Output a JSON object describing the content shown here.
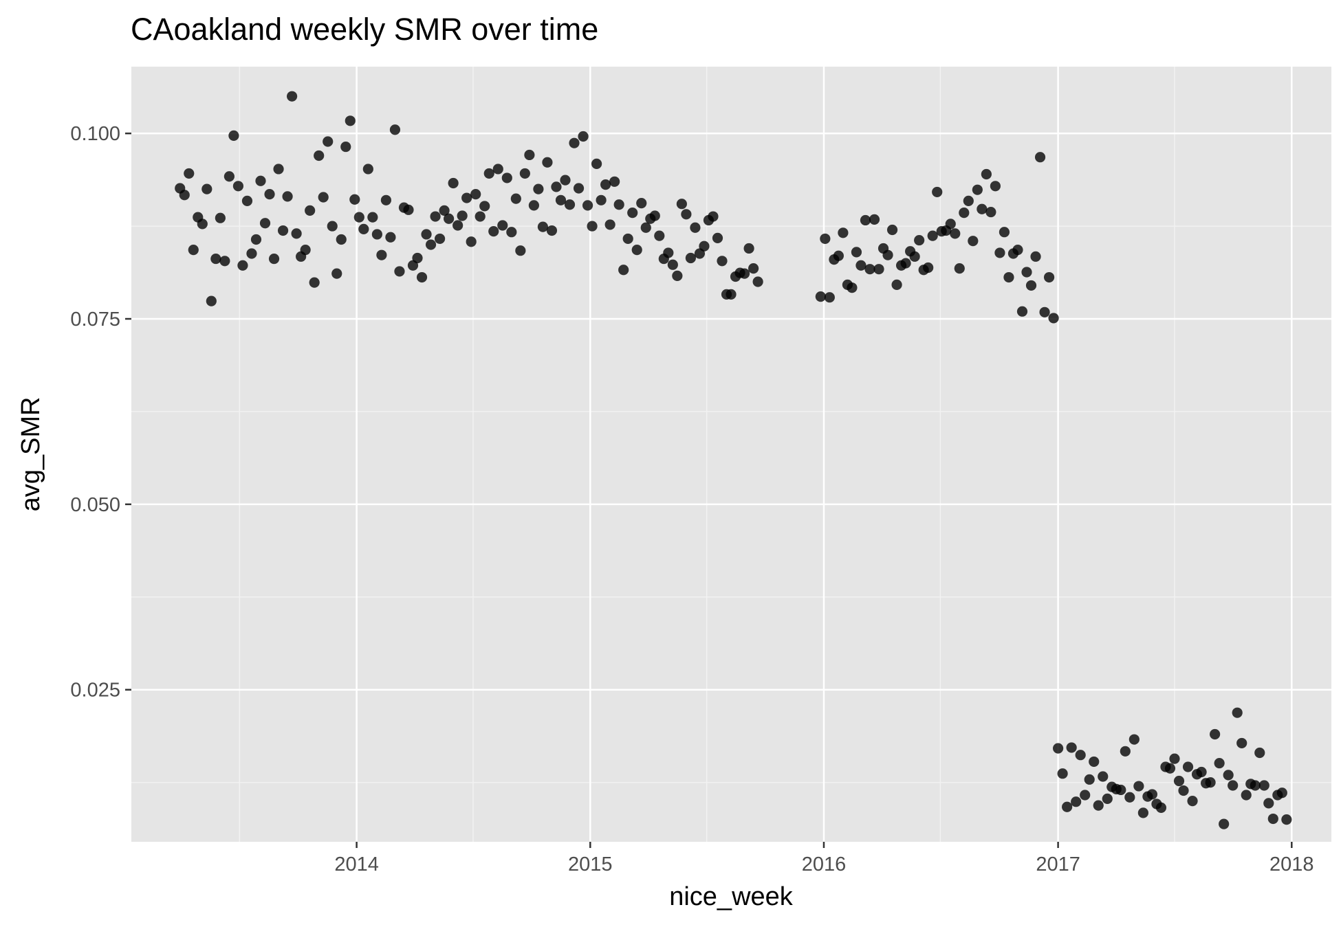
{
  "chart_data": {
    "type": "scatter",
    "title": "CAoakland weekly SMR over time",
    "xlabel": "nice_week",
    "ylabel": "avg_SMR",
    "x_ticks": [
      "2014",
      "2015",
      "2016",
      "2017",
      "2018"
    ],
    "y_ticks": [
      "0.025",
      "0.050",
      "0.075",
      "0.100"
    ],
    "x_range": [
      "2013-01-14",
      "2018-03-04"
    ],
    "y_range": [
      0.0045,
      0.109
    ],
    "grid": true,
    "panel_background": "#e5e5e5",
    "point_color": "#000000",
    "series": [
      {
        "points": [
          [
            "2013-03-31",
            0.0926
          ],
          [
            "2013-04-07",
            0.0917
          ],
          [
            "2013-04-14",
            0.0946
          ],
          [
            "2013-04-21",
            0.0843
          ],
          [
            "2013-04-28",
            0.0887
          ],
          [
            "2013-05-05",
            0.0878
          ],
          [
            "2013-05-12",
            0.0925
          ],
          [
            "2013-05-19",
            0.0774
          ],
          [
            "2013-05-26",
            0.0831
          ],
          [
            "2013-06-02",
            0.0886
          ],
          [
            "2013-06-09",
            0.0828
          ],
          [
            "2013-06-16",
            0.0942
          ],
          [
            "2013-06-23",
            0.0997
          ],
          [
            "2013-06-30",
            0.0929
          ],
          [
            "2013-07-07",
            0.0822
          ],
          [
            "2013-07-14",
            0.0909
          ],
          [
            "2013-07-21",
            0.0838
          ],
          [
            "2013-07-28",
            0.0857
          ],
          [
            "2013-08-04",
            0.0936
          ],
          [
            "2013-08-11",
            0.0879
          ],
          [
            "2013-08-18",
            0.0918
          ],
          [
            "2013-08-25",
            0.0831
          ],
          [
            "2013-09-01",
            0.0952
          ],
          [
            "2013-09-08",
            0.0869
          ],
          [
            "2013-09-15",
            0.0915
          ],
          [
            "2013-09-22",
            0.105
          ],
          [
            "2013-09-29",
            0.0865
          ],
          [
            "2013-10-06",
            0.0834
          ],
          [
            "2013-10-13",
            0.0843
          ],
          [
            "2013-10-20",
            0.0896
          ],
          [
            "2013-10-27",
            0.0799
          ],
          [
            "2013-11-03",
            0.097
          ],
          [
            "2013-11-10",
            0.0914
          ],
          [
            "2013-11-17",
            0.0989
          ],
          [
            "2013-11-24",
            0.0875
          ],
          [
            "2013-12-01",
            0.0811
          ],
          [
            "2013-12-08",
            0.0857
          ],
          [
            "2013-12-15",
            0.0982
          ],
          [
            "2013-12-22",
            0.1017
          ],
          [
            "2013-12-29",
            0.0911
          ],
          [
            "2014-01-05",
            0.0887
          ],
          [
            "2014-01-12",
            0.0871
          ],
          [
            "2014-01-19",
            0.0952
          ],
          [
            "2014-01-26",
            0.0887
          ],
          [
            "2014-02-02",
            0.0864
          ],
          [
            "2014-02-09",
            0.0836
          ],
          [
            "2014-02-16",
            0.091
          ],
          [
            "2014-02-23",
            0.086
          ],
          [
            "2014-03-02",
            0.1005
          ],
          [
            "2014-03-09",
            0.0814
          ],
          [
            "2014-03-16",
            0.09
          ],
          [
            "2014-03-23",
            0.0897
          ],
          [
            "2014-03-30",
            0.0822
          ],
          [
            "2014-04-06",
            0.0832
          ],
          [
            "2014-04-13",
            0.0806
          ],
          [
            "2014-04-20",
            0.0864
          ],
          [
            "2014-04-27",
            0.085
          ],
          [
            "2014-05-04",
            0.0888
          ],
          [
            "2014-05-11",
            0.0858
          ],
          [
            "2014-05-18",
            0.0896
          ],
          [
            "2014-05-25",
            0.0885
          ],
          [
            "2014-06-01",
            0.0933
          ],
          [
            "2014-06-08",
            0.0876
          ],
          [
            "2014-06-15",
            0.0889
          ],
          [
            "2014-06-22",
            0.0913
          ],
          [
            "2014-06-29",
            0.0854
          ],
          [
            "2014-07-06",
            0.0918
          ],
          [
            "2014-07-13",
            0.0888
          ],
          [
            "2014-07-20",
            0.0902
          ],
          [
            "2014-07-27",
            0.0946
          ],
          [
            "2014-08-03",
            0.0868
          ],
          [
            "2014-08-10",
            0.0952
          ],
          [
            "2014-08-17",
            0.0876
          ],
          [
            "2014-08-24",
            0.094
          ],
          [
            "2014-08-31",
            0.0867
          ],
          [
            "2014-09-07",
            0.0912
          ],
          [
            "2014-09-14",
            0.0842
          ],
          [
            "2014-09-21",
            0.0946
          ],
          [
            "2014-09-28",
            0.0971
          ],
          [
            "2014-10-05",
            0.0903
          ],
          [
            "2014-10-12",
            0.0925
          ],
          [
            "2014-10-19",
            0.0874
          ],
          [
            "2014-10-26",
            0.0961
          ],
          [
            "2014-11-02",
            0.0869
          ],
          [
            "2014-11-09",
            0.0928
          ],
          [
            "2014-11-16",
            0.091
          ],
          [
            "2014-11-23",
            0.0937
          ],
          [
            "2014-11-30",
            0.0904
          ],
          [
            "2014-12-07",
            0.0987
          ],
          [
            "2014-12-14",
            0.0926
          ],
          [
            "2014-12-21",
            0.0996
          ],
          [
            "2014-12-28",
            0.0903
          ],
          [
            "2015-01-04",
            0.0875
          ],
          [
            "2015-01-11",
            0.0959
          ],
          [
            "2015-01-18",
            0.091
          ],
          [
            "2015-01-25",
            0.0931
          ],
          [
            "2015-02-01",
            0.0877
          ],
          [
            "2015-02-08",
            0.0935
          ],
          [
            "2015-02-15",
            0.0904
          ],
          [
            "2015-02-22",
            0.0816
          ],
          [
            "2015-03-01",
            0.0858
          ],
          [
            "2015-03-08",
            0.0893
          ],
          [
            "2015-03-15",
            0.0843
          ],
          [
            "2015-03-22",
            0.0906
          ],
          [
            "2015-03-29",
            0.0873
          ],
          [
            "2015-04-05",
            0.0885
          ],
          [
            "2015-04-12",
            0.0889
          ],
          [
            "2015-04-19",
            0.0862
          ],
          [
            "2015-04-26",
            0.0831
          ],
          [
            "2015-05-03",
            0.0839
          ],
          [
            "2015-05-10",
            0.0823
          ],
          [
            "2015-05-17",
            0.0808
          ],
          [
            "2015-05-24",
            0.0905
          ],
          [
            "2015-05-31",
            0.0891
          ],
          [
            "2015-06-07",
            0.0832
          ],
          [
            "2015-06-14",
            0.0873
          ],
          [
            "2015-06-21",
            0.0838
          ],
          [
            "2015-06-28",
            0.0848
          ],
          [
            "2015-07-05",
            0.0883
          ],
          [
            "2015-07-12",
            0.0888
          ],
          [
            "2015-07-19",
            0.0859
          ],
          [
            "2015-07-26",
            0.0828
          ],
          [
            "2015-08-02",
            0.0783
          ],
          [
            "2015-08-09",
            0.0783
          ],
          [
            "2015-08-16",
            0.0807
          ],
          [
            "2015-08-23",
            0.0812
          ],
          [
            "2015-08-30",
            0.0811
          ],
          [
            "2015-09-06",
            0.0845
          ],
          [
            "2015-09-13",
            0.0818
          ],
          [
            "2015-09-20",
            0.08
          ],
          [
            "2015-12-27",
            0.078
          ],
          [
            "2016-01-03",
            0.0858
          ],
          [
            "2016-01-10",
            0.0779
          ],
          [
            "2016-01-17",
            0.083
          ],
          [
            "2016-01-24",
            0.0835
          ],
          [
            "2016-01-31",
            0.0866
          ],
          [
            "2016-02-07",
            0.0796
          ],
          [
            "2016-02-14",
            0.0792
          ],
          [
            "2016-02-21",
            0.084
          ],
          [
            "2016-02-28",
            0.0822
          ],
          [
            "2016-03-06",
            0.0883
          ],
          [
            "2016-03-13",
            0.0817
          ],
          [
            "2016-03-20",
            0.0884
          ],
          [
            "2016-03-27",
            0.0817
          ],
          [
            "2016-04-03",
            0.0845
          ],
          [
            "2016-04-10",
            0.0836
          ],
          [
            "2016-04-17",
            0.087
          ],
          [
            "2016-04-24",
            0.0796
          ],
          [
            "2016-05-01",
            0.0822
          ],
          [
            "2016-05-08",
            0.0825
          ],
          [
            "2016-05-15",
            0.0841
          ],
          [
            "2016-05-22",
            0.0834
          ],
          [
            "2016-05-29",
            0.0856
          ],
          [
            "2016-06-05",
            0.0816
          ],
          [
            "2016-06-12",
            0.0819
          ],
          [
            "2016-06-19",
            0.0862
          ],
          [
            "2016-06-26",
            0.0921
          ],
          [
            "2016-07-03",
            0.0868
          ],
          [
            "2016-07-10",
            0.0869
          ],
          [
            "2016-07-17",
            0.0878
          ],
          [
            "2016-07-24",
            0.0865
          ],
          [
            "2016-07-31",
            0.0818
          ],
          [
            "2016-08-07",
            0.0893
          ],
          [
            "2016-08-14",
            0.0909
          ],
          [
            "2016-08-21",
            0.0855
          ],
          [
            "2016-08-28",
            0.0924
          ],
          [
            "2016-09-04",
            0.0898
          ],
          [
            "2016-09-11",
            0.0945
          ],
          [
            "2016-09-18",
            0.0894
          ],
          [
            "2016-09-25",
            0.0929
          ],
          [
            "2016-10-02",
            0.0839
          ],
          [
            "2016-10-09",
            0.0867
          ],
          [
            "2016-10-16",
            0.0806
          ],
          [
            "2016-10-23",
            0.0838
          ],
          [
            "2016-10-30",
            0.0843
          ],
          [
            "2016-11-06",
            0.076
          ],
          [
            "2016-11-13",
            0.0813
          ],
          [
            "2016-11-20",
            0.0795
          ],
          [
            "2016-11-27",
            0.0834
          ],
          [
            "2016-12-04",
            0.0968
          ],
          [
            "2016-12-11",
            0.0759
          ],
          [
            "2016-12-18",
            0.0806
          ],
          [
            "2016-12-25",
            0.0751
          ],
          [
            "2017-01-01",
            0.0171
          ],
          [
            "2017-01-08",
            0.0137
          ],
          [
            "2017-01-15",
            0.0092
          ],
          [
            "2017-01-22",
            0.0172
          ],
          [
            "2017-01-29",
            0.0099
          ],
          [
            "2017-02-05",
            0.0162
          ],
          [
            "2017-02-12",
            0.0108
          ],
          [
            "2017-02-19",
            0.0129
          ],
          [
            "2017-02-26",
            0.0153
          ],
          [
            "2017-03-05",
            0.0094
          ],
          [
            "2017-03-12",
            0.0133
          ],
          [
            "2017-03-19",
            0.0103
          ],
          [
            "2017-03-26",
            0.0119
          ],
          [
            "2017-04-02",
            0.0116
          ],
          [
            "2017-04-09",
            0.0115
          ],
          [
            "2017-04-16",
            0.0167
          ],
          [
            "2017-04-23",
            0.0105
          ],
          [
            "2017-04-30",
            0.0183
          ],
          [
            "2017-05-07",
            0.012
          ],
          [
            "2017-05-14",
            0.0084
          ],
          [
            "2017-05-21",
            0.0106
          ],
          [
            "2017-05-28",
            0.0109
          ],
          [
            "2017-06-04",
            0.0096
          ],
          [
            "2017-06-11",
            0.0091
          ],
          [
            "2017-06-18",
            0.0146
          ],
          [
            "2017-06-25",
            0.0144
          ],
          [
            "2017-07-02",
            0.0157
          ],
          [
            "2017-07-09",
            0.0127
          ],
          [
            "2017-07-16",
            0.0114
          ],
          [
            "2017-07-23",
            0.0146
          ],
          [
            "2017-07-30",
            0.01
          ],
          [
            "2017-08-06",
            0.0136
          ],
          [
            "2017-08-13",
            0.0139
          ],
          [
            "2017-08-20",
            0.0124
          ],
          [
            "2017-08-27",
            0.0125
          ],
          [
            "2017-09-03",
            0.019
          ],
          [
            "2017-09-10",
            0.0151
          ],
          [
            "2017-09-17",
            0.0069
          ],
          [
            "2017-09-24",
            0.0135
          ],
          [
            "2017-10-01",
            0.0121
          ],
          [
            "2017-10-08",
            0.0219
          ],
          [
            "2017-10-15",
            0.0178
          ],
          [
            "2017-10-22",
            0.0108
          ],
          [
            "2017-10-29",
            0.0123
          ],
          [
            "2017-11-05",
            0.0121
          ],
          [
            "2017-11-12",
            0.0165
          ],
          [
            "2017-11-19",
            0.0121
          ],
          [
            "2017-11-26",
            0.0097
          ],
          [
            "2017-12-03",
            0.0076
          ],
          [
            "2017-12-10",
            0.0108
          ],
          [
            "2017-12-17",
            0.0111
          ],
          [
            "2017-12-24",
            0.0075
          ]
        ]
      }
    ]
  }
}
